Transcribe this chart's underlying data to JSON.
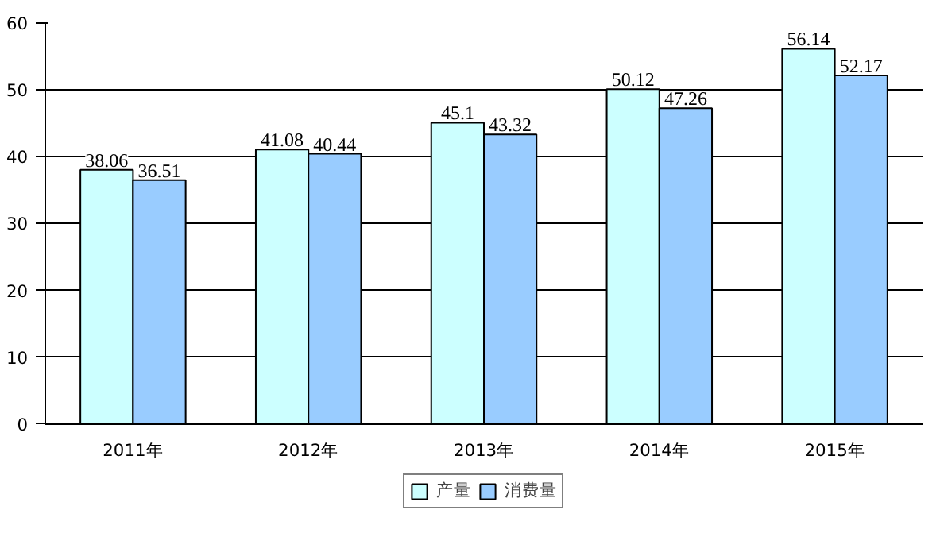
{
  "chart_data": {
    "type": "bar",
    "categories": [
      "2011年",
      "2012年",
      "2013年",
      "2014年",
      "2015年"
    ],
    "series": [
      {
        "name": "产量",
        "color": "#ccffff",
        "values": [
          38.06,
          41.08,
          45.1,
          50.12,
          56.14
        ]
      },
      {
        "name": "消费量",
        "color": "#99ccff",
        "values": [
          36.51,
          40.44,
          43.32,
          47.26,
          52.17
        ]
      }
    ],
    "ylim": [
      0,
      60
    ],
    "yticks": [
      0,
      10,
      20,
      30,
      40,
      50,
      60
    ],
    "grid": "y",
    "legend": "bottom",
    "data_labels": true
  }
}
